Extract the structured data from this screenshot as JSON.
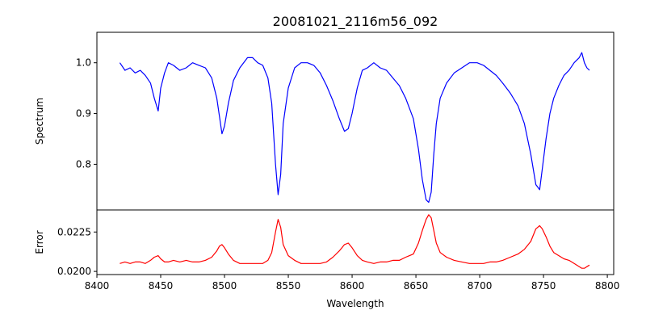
{
  "chart_data": [
    {
      "type": "line",
      "title": "20081021_2116m56_092",
      "xlabel": "",
      "ylabel": "Spectrum",
      "xlim": [
        8400,
        8805
      ],
      "ylim": [
        0.71,
        1.06
      ],
      "yticks": [
        0.8,
        0.9,
        1.0
      ],
      "ytick_labels": [
        "0.8",
        "0.9",
        "1.0"
      ],
      "series": [
        {
          "color": "#0000ff",
          "x": [
            8418,
            8422,
            8426,
            8430,
            8434,
            8438,
            8442,
            8445,
            8448,
            8450,
            8453,
            8456,
            8460,
            8465,
            8470,
            8475,
            8480,
            8485,
            8490,
            8494,
            8496,
            8498,
            8500,
            8503,
            8507,
            8512,
            8518,
            8522,
            8526,
            8530,
            8534,
            8537,
            8540,
            8542,
            8544,
            8546,
            8550,
            8555,
            8560,
            8565,
            8570,
            8575,
            8580,
            8585,
            8590,
            8594,
            8597,
            8600,
            8604,
            8608,
            8612,
            8617,
            8622,
            8627,
            8632,
            8637,
            8642,
            8648,
            8652,
            8655,
            8658,
            8660,
            8662,
            8664,
            8666,
            8669,
            8674,
            8680,
            8686,
            8692,
            8698,
            8703,
            8708,
            8713,
            8718,
            8724,
            8730,
            8735,
            8740,
            8744,
            8747,
            8749,
            8752,
            8755,
            8758,
            8762,
            8766,
            8770,
            8774,
            8778,
            8780,
            8782,
            8784,
            8786
          ],
          "values": [
            1.0,
            0.985,
            0.99,
            0.98,
            0.985,
            0.975,
            0.96,
            0.93,
            0.905,
            0.95,
            0.98,
            1.0,
            0.995,
            0.985,
            0.99,
            1.0,
            0.995,
            0.99,
            0.97,
            0.93,
            0.895,
            0.86,
            0.875,
            0.92,
            0.965,
            0.99,
            1.01,
            1.01,
            1.0,
            0.995,
            0.97,
            0.92,
            0.8,
            0.74,
            0.78,
            0.88,
            0.95,
            0.99,
            1.0,
            1.0,
            0.995,
            0.98,
            0.955,
            0.925,
            0.89,
            0.865,
            0.87,
            0.9,
            0.95,
            0.985,
            0.99,
            1.0,
            0.99,
            0.985,
            0.97,
            0.955,
            0.93,
            0.89,
            0.83,
            0.77,
            0.73,
            0.725,
            0.745,
            0.82,
            0.88,
            0.93,
            0.96,
            0.98,
            0.99,
            1.0,
            1.0,
            0.995,
            0.985,
            0.975,
            0.96,
            0.94,
            0.915,
            0.88,
            0.82,
            0.76,
            0.75,
            0.79,
            0.85,
            0.9,
            0.93,
            0.955,
            0.975,
            0.985,
            1.0,
            1.01,
            1.02,
            1.0,
            0.99,
            0.985
          ]
        }
      ]
    },
    {
      "type": "line",
      "title": "",
      "xlabel": "Wavelength",
      "ylabel": "Error",
      "xlim": [
        8400,
        8805
      ],
      "ylim": [
        0.0198,
        0.0239
      ],
      "xticks": [
        8400,
        8450,
        8500,
        8550,
        8600,
        8650,
        8700,
        8750,
        8800
      ],
      "xtick_labels": [
        "8400",
        "8450",
        "8500",
        "8550",
        "8600",
        "8650",
        "8700",
        "8750",
        "8800"
      ],
      "yticks": [
        0.02,
        0.0225
      ],
      "ytick_labels": [
        "0.0200",
        "0.0225"
      ],
      "series": [
        {
          "color": "#ff0000",
          "x": [
            8418,
            8422,
            8426,
            8430,
            8434,
            8438,
            8442,
            8445,
            8448,
            8450,
            8453,
            8456,
            8460,
            8465,
            8470,
            8475,
            8480,
            8485,
            8490,
            8494,
            8496,
            8498,
            8500,
            8503,
            8507,
            8512,
            8518,
            8522,
            8526,
            8530,
            8534,
            8537,
            8540,
            8542,
            8544,
            8546,
            8550,
            8555,
            8560,
            8565,
            8570,
            8575,
            8580,
            8585,
            8590,
            8594,
            8597,
            8600,
            8604,
            8608,
            8612,
            8617,
            8622,
            8627,
            8632,
            8637,
            8642,
            8648,
            8652,
            8655,
            8658,
            8660,
            8662,
            8664,
            8666,
            8669,
            8674,
            8680,
            8686,
            8692,
            8698,
            8703,
            8708,
            8713,
            8718,
            8724,
            8730,
            8735,
            8740,
            8744,
            8747,
            8749,
            8752,
            8755,
            8758,
            8762,
            8766,
            8770,
            8774,
            8778,
            8780,
            8782,
            8784,
            8786
          ],
          "values": [
            0.0205,
            0.0206,
            0.0205,
            0.0206,
            0.0206,
            0.0205,
            0.0207,
            0.0209,
            0.021,
            0.0208,
            0.0206,
            0.0206,
            0.0207,
            0.0206,
            0.0207,
            0.0206,
            0.0206,
            0.0207,
            0.0209,
            0.0213,
            0.0216,
            0.0217,
            0.0215,
            0.0211,
            0.0207,
            0.0205,
            0.0205,
            0.0205,
            0.0205,
            0.0205,
            0.0207,
            0.0212,
            0.0225,
            0.0233,
            0.0228,
            0.0217,
            0.021,
            0.0207,
            0.0205,
            0.0205,
            0.0205,
            0.0205,
            0.0206,
            0.0209,
            0.0213,
            0.0217,
            0.0218,
            0.0215,
            0.021,
            0.0207,
            0.0206,
            0.0205,
            0.0206,
            0.0206,
            0.0207,
            0.0207,
            0.0209,
            0.0211,
            0.0218,
            0.0226,
            0.0233,
            0.0236,
            0.0234,
            0.0226,
            0.0218,
            0.0212,
            0.0209,
            0.0207,
            0.0206,
            0.0205,
            0.0205,
            0.0205,
            0.0206,
            0.0206,
            0.0207,
            0.0209,
            0.0211,
            0.0214,
            0.0219,
            0.0227,
            0.0229,
            0.0227,
            0.0222,
            0.0216,
            0.0212,
            0.021,
            0.0208,
            0.0207,
            0.0205,
            0.0203,
            0.0202,
            0.0202,
            0.0203,
            0.0204
          ]
        }
      ]
    }
  ]
}
